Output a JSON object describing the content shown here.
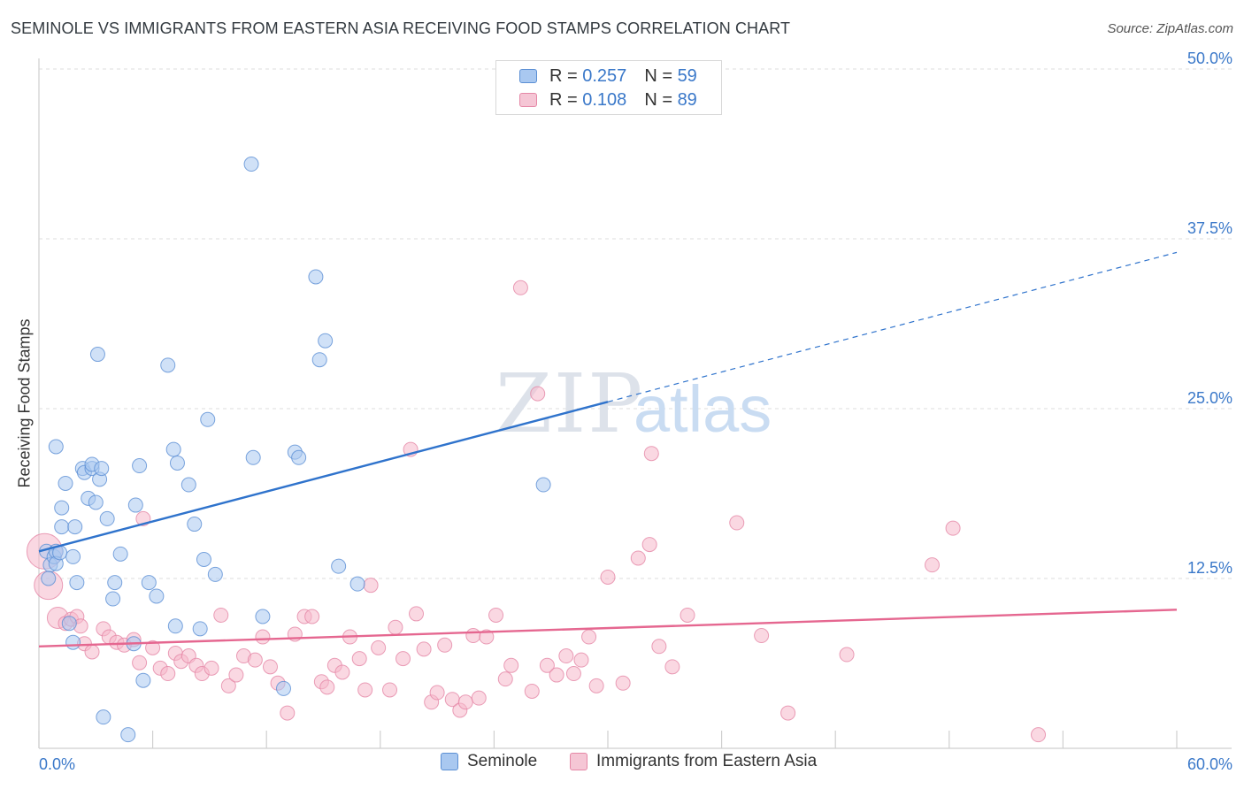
{
  "header": {
    "title": "SEMINOLE VS IMMIGRANTS FROM EASTERN ASIA RECEIVING FOOD STAMPS CORRELATION CHART",
    "source": "Source: ZipAtlas.com"
  },
  "watermark": {
    "zip": "ZIP",
    "atlas": "atlas"
  },
  "legend_top": {
    "r_label": "R =",
    "n_label": "N =",
    "rows": [
      {
        "r": "0.257",
        "n": "59"
      },
      {
        "r": "0.108",
        "n": "89"
      }
    ]
  },
  "colors": {
    "seminole_fill": "#a9c8f0",
    "seminole_stroke": "#5b8fd4",
    "seminole_line": "#2f73cc",
    "immigrants_fill": "#f5b8cb",
    "immigrants_stroke": "#e587a6",
    "immigrants_line": "#e56790",
    "value_text": "#3a78c9",
    "grid": "#dcdcdc"
  },
  "chart_data": {
    "type": "scatter",
    "title": "SEMINOLE VS IMMIGRANTS FROM EASTERN ASIA RECEIVING FOOD STAMPS CORRELATION CHART",
    "xlabel": "",
    "ylabel": "Receiving Food Stamps",
    "xlim": [
      0,
      60
    ],
    "ylim": [
      0,
      50
    ],
    "x_tick_labels": [
      {
        "value": 0,
        "label": "0.0%"
      },
      {
        "value": 60,
        "label": "60.0%"
      }
    ],
    "y_tick_labels": [
      {
        "value": 12.5,
        "label": "12.5%"
      },
      {
        "value": 25,
        "label": "25.0%"
      },
      {
        "value": 37.5,
        "label": "37.5%"
      },
      {
        "value": 50,
        "label": "50.0%"
      }
    ],
    "x_minor_ticks": [
      0,
      6,
      12,
      18,
      24,
      30,
      36,
      42,
      48,
      54,
      60
    ],
    "grid": true,
    "series": [
      {
        "name": "Seminole",
        "R": 0.257,
        "N": 59,
        "trend": {
          "x0": 0,
          "y0": 14.5,
          "x1": 30,
          "y1": 25.5,
          "dashed_to_x": 60,
          "dashed_to_y": 36.5
        },
        "points": [
          [
            0.4,
            14.5
          ],
          [
            0.6,
            13.5
          ],
          [
            0.5,
            12.5
          ],
          [
            0.8,
            14.1
          ],
          [
            0.9,
            14.5
          ],
          [
            0.9,
            13.6
          ],
          [
            1.1,
            14.4
          ],
          [
            0.9,
            22.2
          ],
          [
            1.2,
            17.7
          ],
          [
            1.2,
            16.3
          ],
          [
            1.4,
            19.5
          ],
          [
            1.8,
            14.1
          ],
          [
            1.9,
            16.3
          ],
          [
            2.0,
            12.2
          ],
          [
            2.3,
            20.6
          ],
          [
            2.4,
            20.3
          ],
          [
            2.6,
            18.4
          ],
          [
            2.8,
            20.6
          ],
          [
            2.8,
            20.9
          ],
          [
            3.0,
            18.1
          ],
          [
            3.1,
            29.0
          ],
          [
            3.2,
            19.8
          ],
          [
            3.3,
            20.6
          ],
          [
            3.6,
            16.9
          ],
          [
            3.9,
            11.0
          ],
          [
            4.0,
            12.2
          ],
          [
            4.3,
            14.3
          ],
          [
            5.1,
            17.9
          ],
          [
            5.3,
            20.8
          ],
          [
            5.5,
            5.0
          ],
          [
            5.8,
            12.2
          ],
          [
            6.2,
            11.2
          ],
          [
            6.8,
            28.2
          ],
          [
            7.1,
            22.0
          ],
          [
            7.3,
            21.0
          ],
          [
            7.9,
            19.4
          ],
          [
            8.2,
            16.5
          ],
          [
            8.5,
            8.8
          ],
          [
            8.7,
            13.9
          ],
          [
            8.9,
            24.2
          ],
          [
            9.3,
            12.8
          ],
          [
            11.2,
            43.0
          ],
          [
            11.3,
            21.4
          ],
          [
            11.8,
            9.7
          ],
          [
            12.9,
            4.4
          ],
          [
            13.5,
            21.8
          ],
          [
            13.7,
            21.4
          ],
          [
            14.6,
            34.7
          ],
          [
            14.8,
            28.6
          ],
          [
            15.1,
            30.0
          ],
          [
            15.8,
            13.4
          ],
          [
            16.8,
            12.1
          ],
          [
            26.6,
            19.4
          ],
          [
            3.4,
            2.3
          ],
          [
            4.7,
            1.0
          ],
          [
            1.6,
            9.2
          ],
          [
            1.8,
            7.8
          ],
          [
            5.0,
            7.7
          ],
          [
            7.2,
            9.0
          ]
        ]
      },
      {
        "name": "Immigrants from Eastern Asia",
        "R": 0.108,
        "N": 89,
        "trend": {
          "x0": 0,
          "y0": 7.5,
          "x1": 60,
          "y1": 10.2
        },
        "points": [
          [
            0.3,
            14.5
          ],
          [
            0.5,
            12.0
          ],
          [
            1.0,
            9.6
          ],
          [
            1.4,
            9.2
          ],
          [
            1.7,
            9.5
          ],
          [
            2.0,
            9.7
          ],
          [
            2.4,
            7.7
          ],
          [
            2.8,
            7.1
          ],
          [
            3.4,
            8.8
          ],
          [
            3.7,
            8.2
          ],
          [
            4.1,
            7.8
          ],
          [
            4.5,
            7.6
          ],
          [
            5.0,
            8.0
          ],
          [
            5.3,
            6.3
          ],
          [
            5.5,
            16.9
          ],
          [
            6.0,
            7.4
          ],
          [
            6.4,
            5.9
          ],
          [
            6.8,
            5.5
          ],
          [
            7.2,
            7.0
          ],
          [
            7.5,
            6.4
          ],
          [
            7.9,
            6.8
          ],
          [
            8.3,
            6.1
          ],
          [
            8.6,
            5.5
          ],
          [
            9.1,
            5.9
          ],
          [
            9.6,
            9.8
          ],
          [
            10.0,
            4.6
          ],
          [
            10.4,
            5.4
          ],
          [
            10.8,
            6.8
          ],
          [
            11.4,
            6.5
          ],
          [
            11.8,
            8.2
          ],
          [
            12.2,
            6.0
          ],
          [
            12.6,
            4.8
          ],
          [
            13.1,
            2.6
          ],
          [
            13.5,
            8.4
          ],
          [
            14.0,
            9.7
          ],
          [
            14.4,
            9.7
          ],
          [
            14.9,
            4.9
          ],
          [
            15.2,
            4.5
          ],
          [
            15.6,
            6.1
          ],
          [
            16.0,
            5.6
          ],
          [
            16.4,
            8.2
          ],
          [
            16.9,
            6.6
          ],
          [
            17.2,
            4.3
          ],
          [
            17.5,
            12.0
          ],
          [
            17.9,
            7.4
          ],
          [
            18.5,
            4.3
          ],
          [
            18.8,
            8.9
          ],
          [
            19.2,
            6.6
          ],
          [
            19.6,
            22.0
          ],
          [
            19.9,
            9.9
          ],
          [
            20.3,
            7.3
          ],
          [
            20.7,
            3.4
          ],
          [
            21.0,
            4.1
          ],
          [
            21.4,
            7.6
          ],
          [
            21.8,
            3.6
          ],
          [
            22.2,
            2.8
          ],
          [
            22.5,
            3.4
          ],
          [
            22.9,
            8.3
          ],
          [
            23.2,
            3.7
          ],
          [
            23.6,
            8.2
          ],
          [
            24.1,
            9.8
          ],
          [
            24.6,
            5.1
          ],
          [
            24.9,
            6.1
          ],
          [
            25.4,
            33.9
          ],
          [
            26.0,
            4.2
          ],
          [
            26.3,
            26.1
          ],
          [
            26.8,
            6.1
          ],
          [
            27.3,
            5.4
          ],
          [
            27.8,
            6.8
          ],
          [
            28.2,
            5.5
          ],
          [
            28.6,
            6.5
          ],
          [
            29.0,
            8.2
          ],
          [
            29.4,
            4.6
          ],
          [
            30.0,
            12.6
          ],
          [
            30.8,
            4.8
          ],
          [
            31.6,
            14.0
          ],
          [
            32.2,
            15.0
          ],
          [
            32.3,
            21.7
          ],
          [
            32.7,
            7.5
          ],
          [
            33.4,
            6.0
          ],
          [
            34.2,
            9.8
          ],
          [
            36.8,
            16.6
          ],
          [
            38.1,
            8.3
          ],
          [
            39.5,
            2.6
          ],
          [
            42.6,
            6.9
          ],
          [
            47.1,
            13.5
          ],
          [
            48.2,
            16.2
          ],
          [
            52.7,
            1.0
          ],
          [
            2.2,
            9.0
          ]
        ]
      }
    ]
  },
  "legend_bottom": {
    "items": [
      {
        "label": "Seminole"
      },
      {
        "label": "Immigrants from Eastern Asia"
      }
    ]
  }
}
